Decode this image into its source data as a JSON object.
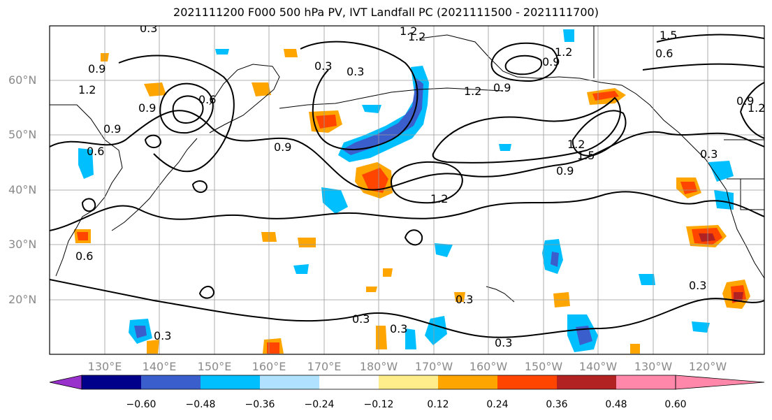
{
  "title": "2021111200 F000 500 hPa PV, IVT Landfall PC (2021111500 - 2021111700)",
  "lat_labels": [
    "60°N",
    "50°N",
    "40°N",
    "30°N",
    "20°N"
  ],
  "lon_labels": [
    "130°E",
    "140°E",
    "150°E",
    "160°E",
    "170°E",
    "180°W",
    "170°W",
    "160°W",
    "150°W",
    "140°W",
    "130°W",
    "120°W"
  ],
  "contour_labels": [
    "0.9",
    "1.2",
    "1.5",
    "0.6",
    "0.3",
    "0.9",
    "1.2",
    "0.9",
    "0.6",
    "0.3",
    "0.3",
    "0.9",
    "1.2",
    "0.3",
    "1.2",
    "0.9",
    "0.9",
    "1.5",
    "0.6",
    "0.9",
    "1.2",
    "0.3",
    "0.3",
    "0.3",
    "0.3",
    "0.3",
    "0.6",
    "0.3",
    "0.9",
    "1.2",
    "1.2",
    "1.2"
  ],
  "colorbar": {
    "colors": [
      "#9932CC",
      "#00008B",
      "#3A5FCD",
      "#00BFFF",
      "#B0E2FF",
      "#FFFFFF",
      "#FFEC8B",
      "#FFA500",
      "#FF4500",
      "#B22222",
      "#FF88AA"
    ],
    "tick_labels": [
      "−0.60",
      "−0.48",
      "−0.36",
      "−0.24",
      "−0.12",
      "0.12",
      "0.24",
      "0.36",
      "0.48",
      "0.60"
    ]
  }
}
